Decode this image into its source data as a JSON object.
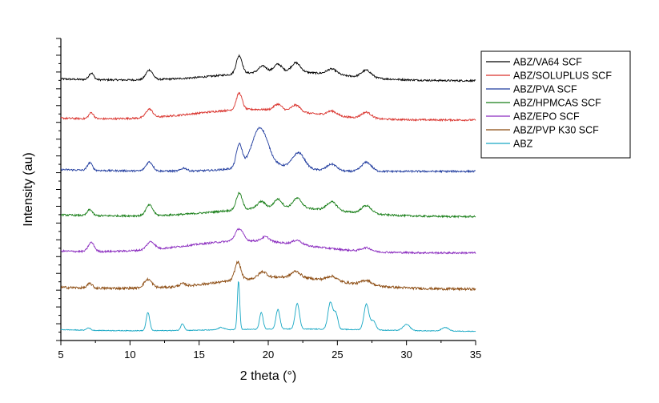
{
  "chart_data": {
    "type": "line",
    "title": "",
    "xlabel": "2 theta (°)",
    "ylabel": "Intensity (au)",
    "xlim": [
      5,
      35
    ],
    "xticks": [
      5,
      10,
      15,
      20,
      25,
      30,
      35
    ],
    "ylim": [
      0,
      100
    ],
    "grid": false,
    "legend_position": "top-right",
    "y_ticks_labeled": false,
    "series": [
      {
        "name": "ABZ/VA64 SCF",
        "color": "#000000",
        "offset": 86,
        "noise": 0.6,
        "amorphous": {
          "center": 21,
          "width": 6,
          "height": 3
        },
        "peaks": [
          {
            "x": 7.2,
            "h": 2.2,
            "w": 0.25
          },
          {
            "x": 11.4,
            "h": 3.2,
            "w": 0.35
          },
          {
            "x": 17.9,
            "h": 6.0,
            "w": 0.3
          },
          {
            "x": 19.6,
            "h": 2.0,
            "w": 0.4
          },
          {
            "x": 20.7,
            "h": 2.5,
            "w": 0.4
          },
          {
            "x": 22.0,
            "h": 3.0,
            "w": 0.45
          },
          {
            "x": 24.6,
            "h": 1.8,
            "w": 0.5
          },
          {
            "x": 27.1,
            "h": 2.4,
            "w": 0.5
          }
        ]
      },
      {
        "name": "ABZ/SOLUPLUS SCF",
        "color": "#d9312b",
        "offset": 73,
        "noise": 0.6,
        "amorphous": {
          "center": 19,
          "width": 6,
          "height": 3.5
        },
        "peaks": [
          {
            "x": 7.2,
            "h": 2.0,
            "w": 0.25
          },
          {
            "x": 11.4,
            "h": 2.8,
            "w": 0.35
          },
          {
            "x": 17.9,
            "h": 5.5,
            "w": 0.3
          },
          {
            "x": 20.7,
            "h": 2.0,
            "w": 0.4
          },
          {
            "x": 22.0,
            "h": 2.2,
            "w": 0.45
          },
          {
            "x": 24.6,
            "h": 1.5,
            "w": 0.5
          },
          {
            "x": 27.1,
            "h": 2.0,
            "w": 0.5
          }
        ]
      },
      {
        "name": "ABZ/PVA SCF",
        "color": "#1f3b9e",
        "offset": 56,
        "noise": 0.6,
        "amorphous": {
          "center": 20,
          "width": 3,
          "height": 2
        },
        "peaks": [
          {
            "x": 7.1,
            "h": 2.5,
            "w": 0.25
          },
          {
            "x": 11.4,
            "h": 3.0,
            "w": 0.35
          },
          {
            "x": 13.9,
            "h": 1.0,
            "w": 0.3
          },
          {
            "x": 17.9,
            "h": 7.5,
            "w": 0.3
          },
          {
            "x": 19.4,
            "h": 12.5,
            "w": 0.8
          },
          {
            "x": 22.2,
            "h": 5.0,
            "w": 0.6
          },
          {
            "x": 24.6,
            "h": 2.2,
            "w": 0.5
          },
          {
            "x": 27.1,
            "h": 3.0,
            "w": 0.5
          }
        ]
      },
      {
        "name": "ABZ/HPMCAS SCF",
        "color": "#167d16",
        "offset": 41,
        "noise": 0.6,
        "amorphous": {
          "center": 21,
          "width": 6,
          "height": 3
        },
        "peaks": [
          {
            "x": 7.1,
            "h": 2.0,
            "w": 0.25
          },
          {
            "x": 11.4,
            "h": 3.5,
            "w": 0.35
          },
          {
            "x": 17.9,
            "h": 5.5,
            "w": 0.3
          },
          {
            "x": 19.5,
            "h": 2.2,
            "w": 0.4
          },
          {
            "x": 20.7,
            "h": 2.8,
            "w": 0.4
          },
          {
            "x": 22.1,
            "h": 3.2,
            "w": 0.45
          },
          {
            "x": 24.6,
            "h": 2.8,
            "w": 0.5
          },
          {
            "x": 27.1,
            "h": 2.6,
            "w": 0.5
          }
        ]
      },
      {
        "name": "ABZ/EPO SCF",
        "color": "#8a2bbf",
        "offset": 29,
        "noise": 0.6,
        "amorphous": {
          "center": 18.5,
          "width": 6,
          "height": 4
        },
        "peaks": [
          {
            "x": 7.2,
            "h": 3.0,
            "w": 0.3
          },
          {
            "x": 11.5,
            "h": 2.6,
            "w": 0.4
          },
          {
            "x": 17.9,
            "h": 4.0,
            "w": 0.4
          },
          {
            "x": 19.8,
            "h": 1.5,
            "w": 0.4
          },
          {
            "x": 22.1,
            "h": 1.4,
            "w": 0.45
          },
          {
            "x": 27.1,
            "h": 1.2,
            "w": 0.5
          }
        ]
      },
      {
        "name": "ABZ/PVP K30 SCF",
        "color": "#8b4a0f",
        "offset": 17,
        "noise": 0.8,
        "amorphous": {
          "center": 21,
          "width": 6,
          "height": 4
        },
        "peaks": [
          {
            "x": 7.1,
            "h": 1.5,
            "w": 0.25
          },
          {
            "x": 11.3,
            "h": 2.8,
            "w": 0.4
          },
          {
            "x": 13.8,
            "h": 0.8,
            "w": 0.3
          },
          {
            "x": 17.8,
            "h": 6.0,
            "w": 0.3
          },
          {
            "x": 19.6,
            "h": 2.0,
            "w": 0.4
          },
          {
            "x": 22.0,
            "h": 2.0,
            "w": 0.45
          },
          {
            "x": 24.6,
            "h": 1.5,
            "w": 0.5
          },
          {
            "x": 27.1,
            "h": 1.5,
            "w": 0.5
          }
        ]
      },
      {
        "name": "ABZ",
        "color": "#17a7c4",
        "offset": 3,
        "noise": 0.25,
        "amorphous": {
          "center": 22,
          "width": 8,
          "height": 0.8
        },
        "peaks": [
          {
            "x": 7.0,
            "h": 0.8,
            "w": 0.2
          },
          {
            "x": 11.3,
            "h": 6.0,
            "w": 0.18
          },
          {
            "x": 13.8,
            "h": 2.2,
            "w": 0.18
          },
          {
            "x": 16.6,
            "h": 0.8,
            "w": 0.3
          },
          {
            "x": 17.85,
            "h": 16.0,
            "w": 0.12
          },
          {
            "x": 19.5,
            "h": 5.5,
            "w": 0.18
          },
          {
            "x": 20.7,
            "h": 6.5,
            "w": 0.2
          },
          {
            "x": 22.1,
            "h": 8.5,
            "w": 0.22
          },
          {
            "x": 24.5,
            "h": 9.0,
            "w": 0.25
          },
          {
            "x": 24.9,
            "h": 5.0,
            "w": 0.2
          },
          {
            "x": 27.1,
            "h": 8.5,
            "w": 0.25
          },
          {
            "x": 27.6,
            "h": 3.0,
            "w": 0.25
          },
          {
            "x": 30.0,
            "h": 2.0,
            "w": 0.35
          },
          {
            "x": 32.8,
            "h": 1.2,
            "w": 0.35
          }
        ]
      }
    ]
  }
}
